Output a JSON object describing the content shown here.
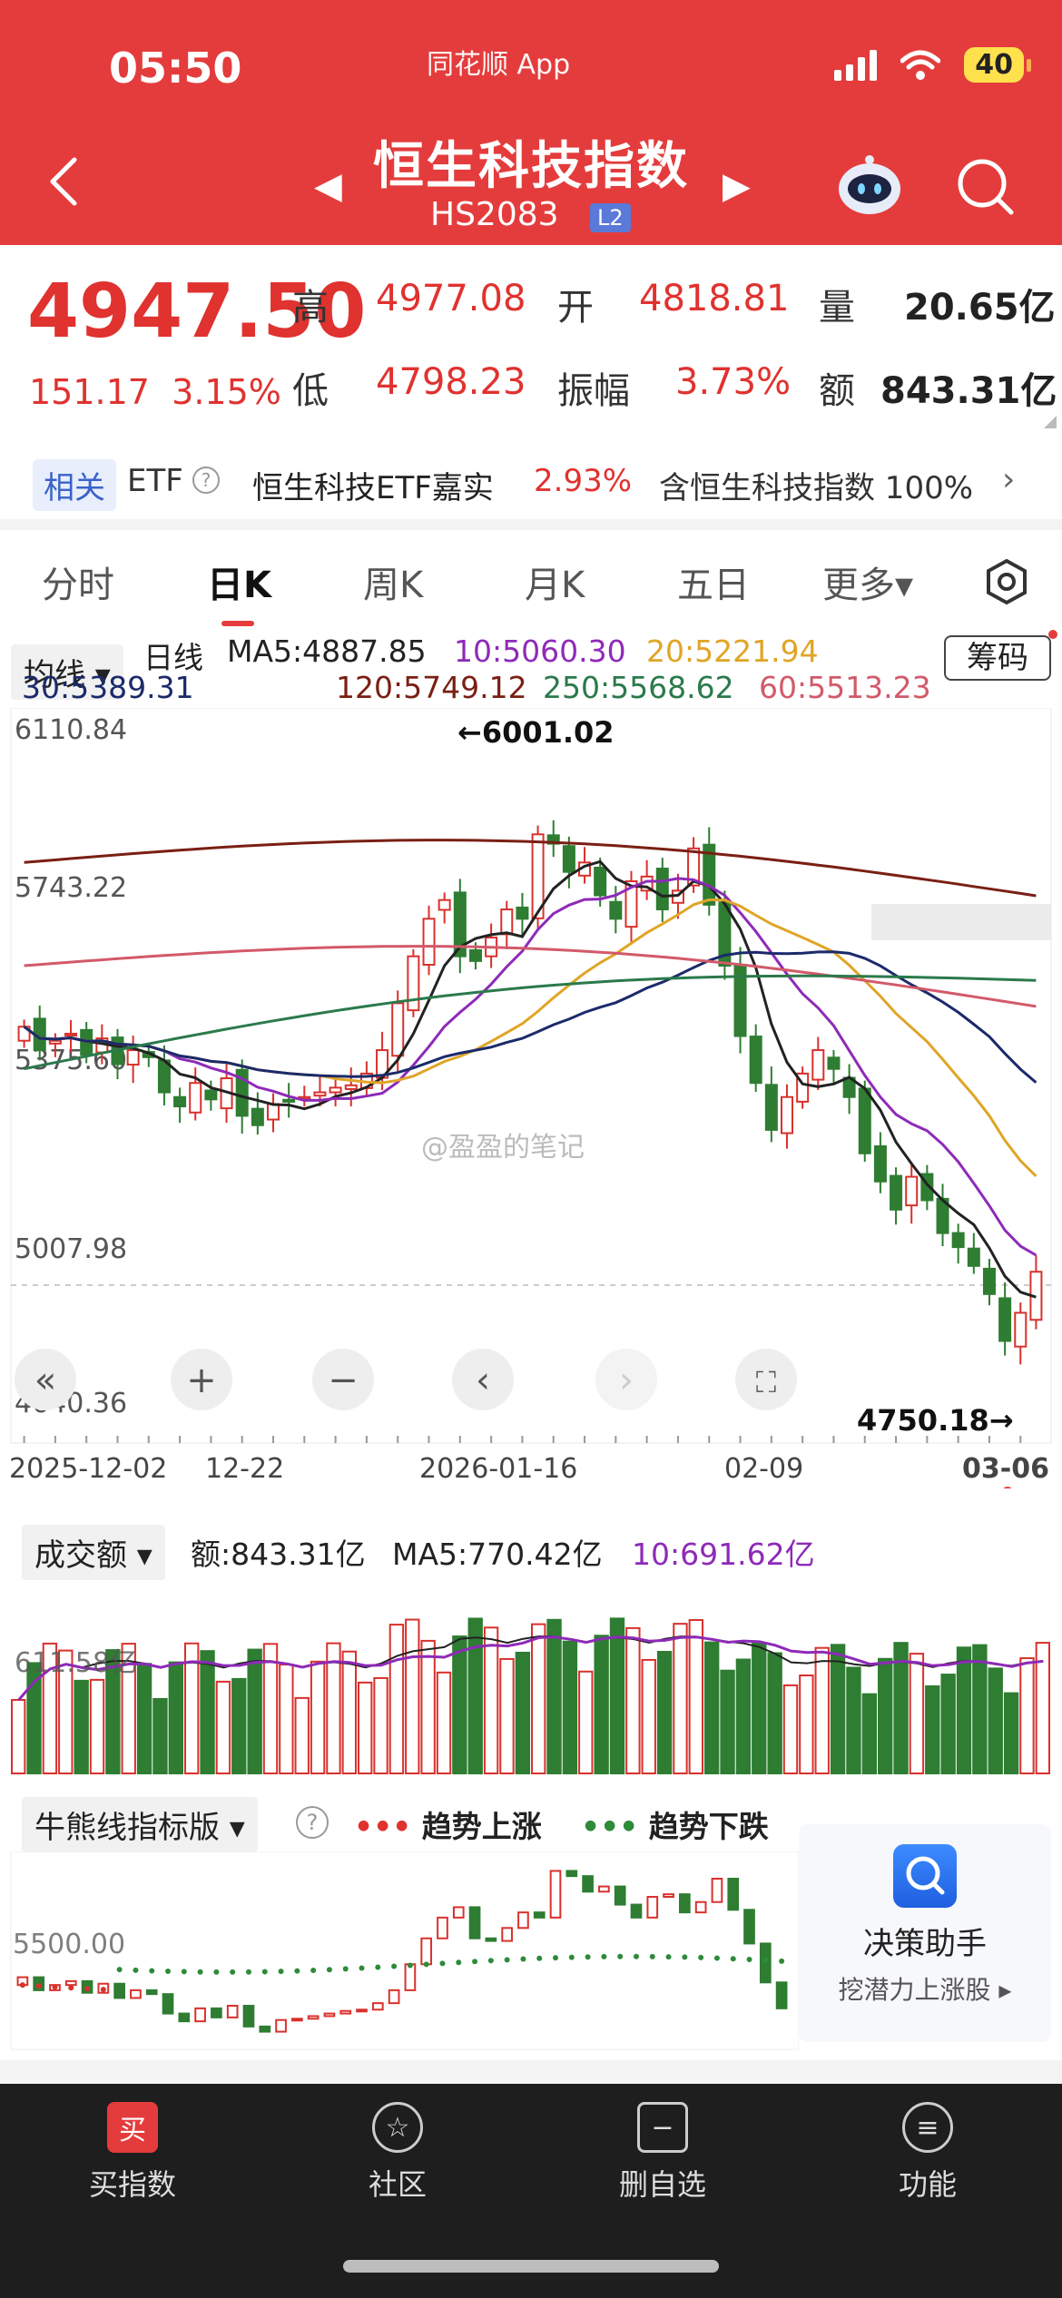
{
  "status_bar": {
    "time": "05:50",
    "app": "同花顺 App",
    "battery": "40"
  },
  "header": {
    "title": "恒生科技指数",
    "code": "HS2083",
    "level_badge": "L2"
  },
  "quote": {
    "price": "4947.50",
    "change": "151.17",
    "change_pct": "3.15%",
    "labels": {
      "high": "高",
      "open": "开",
      "volume": "量",
      "low": "低",
      "amplitude": "振幅",
      "turnover": "额"
    },
    "high": "4977.08",
    "open": "4818.81",
    "volume": "20.65亿",
    "low": "4798.23",
    "amplitude": "3.73%",
    "turnover": "843.31亿"
  },
  "etf": {
    "tag": "相关",
    "word": "ETF",
    "help": "?",
    "name": "恒生科技ETF嘉实",
    "pct": "2.93%",
    "holding": "含恒生科技指数 100%",
    "arrow": "›"
  },
  "tabs": [
    {
      "label": "分时"
    },
    {
      "label": "日K"
    },
    {
      "label": "周K"
    },
    {
      "label": "月K"
    },
    {
      "label": "五日"
    },
    {
      "label": "更多▾"
    }
  ],
  "ma_legend": {
    "select": "均线 ▾",
    "period": "日线",
    "ma5": "MA5:4887.85",
    "ma10": "10:5060.30",
    "ma20": "20:5221.94",
    "ma30": "30:5389.31",
    "ma120": "120:5749.12",
    "ma250": "250:5568.62",
    "ma60": "60:5513.23",
    "chip_button": "筹码",
    "colors": {
      "ma5": "#222222",
      "ma10": "#8e2ab8",
      "ma20": "#e0a526",
      "ma30": "#1b2a6b",
      "ma120": "#7a1f14",
      "ma250": "#2b7a4b",
      "ma60": "#d25a6a"
    }
  },
  "kline": {
    "y_ticks": [
      "6110.84",
      "5743.22",
      "5375.60",
      "5007.98",
      "4640.36"
    ],
    "high_note": "←6001.02",
    "low_note": "4750.18→",
    "x_ticks": [
      "2025-12-02",
      "12-22",
      "2026-01-16",
      "02-09",
      "03-06"
    ],
    "watermark": "@盈盈的笔记",
    "controls": [
      "«",
      "+",
      "−",
      "‹",
      "›",
      "⛶"
    ]
  },
  "chart_data": {
    "type": "candlestick",
    "y_range": [
      4640.36,
      6110.84
    ],
    "closes": [
      5470,
      5420,
      5440,
      5455,
      5410,
      5445,
      5390,
      5420,
      5405,
      5330,
      5300,
      5350,
      5315,
      5360,
      5280,
      5260,
      5305,
      5310,
      5320,
      5330,
      5340,
      5345,
      5370,
      5420,
      5520,
      5620,
      5700,
      5740,
      5620,
      5610,
      5660,
      5720,
      5700,
      5880,
      5860,
      5800,
      5820,
      5750,
      5700,
      5780,
      5790,
      5720,
      5760,
      5850,
      5730,
      5600,
      5450,
      5350,
      5250,
      5320,
      5370,
      5420,
      5380,
      5320,
      5200,
      5140,
      5080,
      5150,
      5100,
      5030,
      5000,
      4960,
      4900,
      4800,
      4860,
      4947.5
    ],
    "volume": {
      "label": "成交额 ▾",
      "amount": "额:843.31亿",
      "ma5": "MA5:770.42亿",
      "ma10": "10:691.62亿",
      "y_tick": "611.58亿"
    }
  },
  "indicator": {
    "select": "牛熊线指标版 ▾",
    "help": "?",
    "up_label": "趋势上涨",
    "down_label": "趋势下跌",
    "y_tick": "5500.00",
    "assistant_title": "决策助手",
    "assistant_sub": "挖潜力上涨股 ▸"
  },
  "bottom_nav": [
    {
      "icon": "买",
      "label": "买指数"
    },
    {
      "icon": "☆",
      "label": "社区"
    },
    {
      "icon": "−",
      "label": "删自选"
    },
    {
      "icon": "≡",
      "label": "功能"
    }
  ]
}
